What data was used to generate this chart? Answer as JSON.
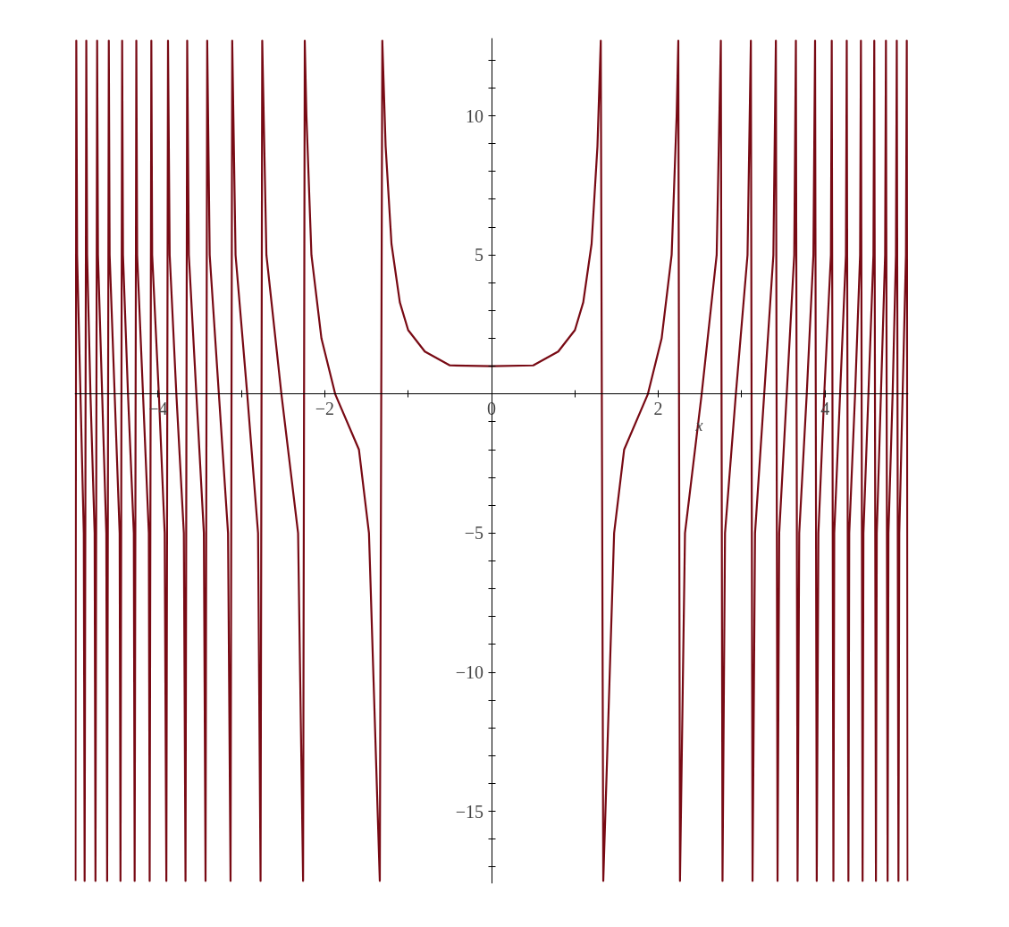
{
  "chart_data": {
    "type": "line",
    "xlabel": "x",
    "x": [
      -4.99,
      -4.98,
      -4.97,
      -4.93,
      -4.89,
      -4.88,
      -4.86,
      -4.85,
      -4.81,
      -4.76,
      -4.75,
      -4.73,
      -4.72,
      -4.67,
      -4.62,
      -4.61,
      -4.59,
      -4.58,
      -4.52,
      -4.46,
      -4.45,
      -4.43,
      -4.42,
      -4.36,
      -4.29,
      -4.28,
      -4.26,
      -4.25,
      -4.18,
      -4.11,
      -4.1,
      -4.08,
      -4.07,
      -3.99,
      -3.92,
      -3.9,
      -3.88,
      -3.86,
      -3.78,
      -3.69,
      -3.67,
      -3.65,
      -3.63,
      -3.54,
      -3.45,
      -3.43,
      -3.41,
      -3.38,
      -3.27,
      -3.16,
      -3.13,
      -3.11,
      -3.07,
      -2.93,
      -2.8,
      -2.77,
      -2.75,
      -2.7,
      -2.52,
      -2.32,
      -2.26,
      -2.24,
      -2.22,
      -2.16,
      -2.04,
      -1.875,
      -1.59,
      -1.47,
      -1.34,
      -1.31,
      -1.27,
      -1.2,
      -1.1,
      -1.0,
      -0.8,
      -0.5,
      0,
      0.5,
      0.8,
      1.0,
      1.1,
      1.2,
      1.27,
      1.31,
      1.34,
      1.47,
      1.59,
      1.875,
      2.04,
      2.16,
      2.22,
      2.24,
      2.26,
      2.32,
      2.52,
      2.7,
      2.75,
      2.77,
      2.8,
      2.93,
      3.07,
      3.11,
      3.13,
      3.16,
      3.27,
      3.38,
      3.41,
      3.43,
      3.45,
      3.54,
      3.63,
      3.65,
      3.67,
      3.69,
      3.78,
      3.86,
      3.88,
      3.9,
      3.92,
      3.99,
      4.07,
      4.08,
      4.1,
      4.11,
      4.18,
      4.25,
      4.26,
      4.28,
      4.29,
      4.36,
      4.42,
      4.43,
      4.45,
      4.46,
      4.52,
      4.58,
      4.59,
      4.61,
      4.62,
      4.67,
      4.72,
      4.73,
      4.75,
      4.76,
      4.81,
      4.85,
      4.86,
      4.88,
      4.89,
      4.93,
      4.97,
      4.98,
      4.99
    ],
    "series": [
      {
        "color": "#780a14",
        "values": [
          -17.5,
          12.7,
          5,
          0,
          -5,
          -17.5,
          12.7,
          5,
          0,
          -5,
          -17.5,
          12.7,
          5,
          0,
          -5,
          -17.5,
          12.7,
          5,
          0,
          -5,
          -17.5,
          12.7,
          5,
          0,
          -5,
          -17.5,
          12.7,
          5,
          0,
          -5,
          -17.5,
          12.7,
          5,
          0,
          -5,
          -17.5,
          12.7,
          5,
          0,
          -5,
          -17.5,
          12.7,
          5,
          0,
          -5,
          -17.5,
          12.7,
          5,
          0,
          -5,
          -17.5,
          12.7,
          5,
          0,
          -5,
          -17.5,
          12.7,
          5,
          0,
          -5,
          -17.5,
          12.7,
          10,
          5,
          2,
          0,
          -2,
          -5,
          -17.5,
          12.7,
          8.9,
          5.4,
          3.3,
          2.3,
          1.53,
          1.03,
          1,
          1.03,
          1.53,
          2.3,
          3.3,
          5.4,
          8.9,
          12.7,
          -17.5,
          -5,
          -2,
          0,
          2,
          5,
          10,
          12.7,
          -17.5,
          -5,
          0,
          5,
          12.7,
          -17.5,
          -5,
          0,
          5,
          12.7,
          -17.5,
          -5,
          0,
          5,
          12.7,
          -17.5,
          -5,
          0,
          5,
          12.7,
          -17.5,
          -5,
          0,
          5,
          12.7,
          -17.5,
          -5,
          0,
          5,
          12.7,
          -17.5,
          -5,
          0,
          5,
          12.7,
          -17.5,
          -5,
          0,
          5,
          12.7,
          -17.5,
          -5,
          0,
          5,
          12.7,
          -17.5,
          -5,
          0,
          5,
          12.7,
          -17.5,
          -5,
          0,
          5,
          12.7,
          -17.5,
          -5,
          0,
          5,
          12.7,
          -17.5
        ]
      }
    ],
    "xlim": [
      -5,
      5
    ],
    "ylim": [
      -17.6,
      12.8
    ],
    "xticks": [
      {
        "value": -4,
        "label": "−4"
      },
      {
        "value": -3,
        "label": null
      },
      {
        "value": -2,
        "label": "−2"
      },
      {
        "value": -1,
        "label": null
      },
      0,
      {
        "value": 1,
        "label": null
      },
      2,
      {
        "value": 3,
        "label": null
      },
      4
    ],
    "yticks": [
      {
        "value": -17,
        "label": null
      },
      {
        "value": -16,
        "label": null
      },
      {
        "value": -15,
        "label": "−15"
      },
      {
        "value": -14,
        "label": null
      },
      {
        "value": -13,
        "label": null
      },
      {
        "value": -12,
        "label": null
      },
      {
        "value": -11,
        "label": null
      },
      {
        "value": -10,
        "label": "−10"
      },
      {
        "value": -9,
        "label": null
      },
      {
        "value": -8,
        "label": null
      },
      {
        "value": -7,
        "label": null
      },
      {
        "value": -6,
        "label": null
      },
      {
        "value": -5,
        "label": "−5"
      },
      {
        "value": -4,
        "label": null
      },
      {
        "value": -3,
        "label": null
      },
      {
        "value": -2,
        "label": null
      },
      {
        "value": -1,
        "label": null
      },
      {
        "value": 1,
        "label": null
      },
      {
        "value": 2,
        "label": null
      },
      {
        "value": 3,
        "label": null
      },
      {
        "value": 4,
        "label": null
      },
      5,
      {
        "value": 6,
        "label": null
      },
      {
        "value": 7,
        "label": null
      },
      {
        "value": 8,
        "label": null
      },
      {
        "value": 9,
        "label": null
      },
      10,
      {
        "value": 11,
        "label": null
      },
      {
        "value": 12,
        "label": null
      }
    ]
  }
}
